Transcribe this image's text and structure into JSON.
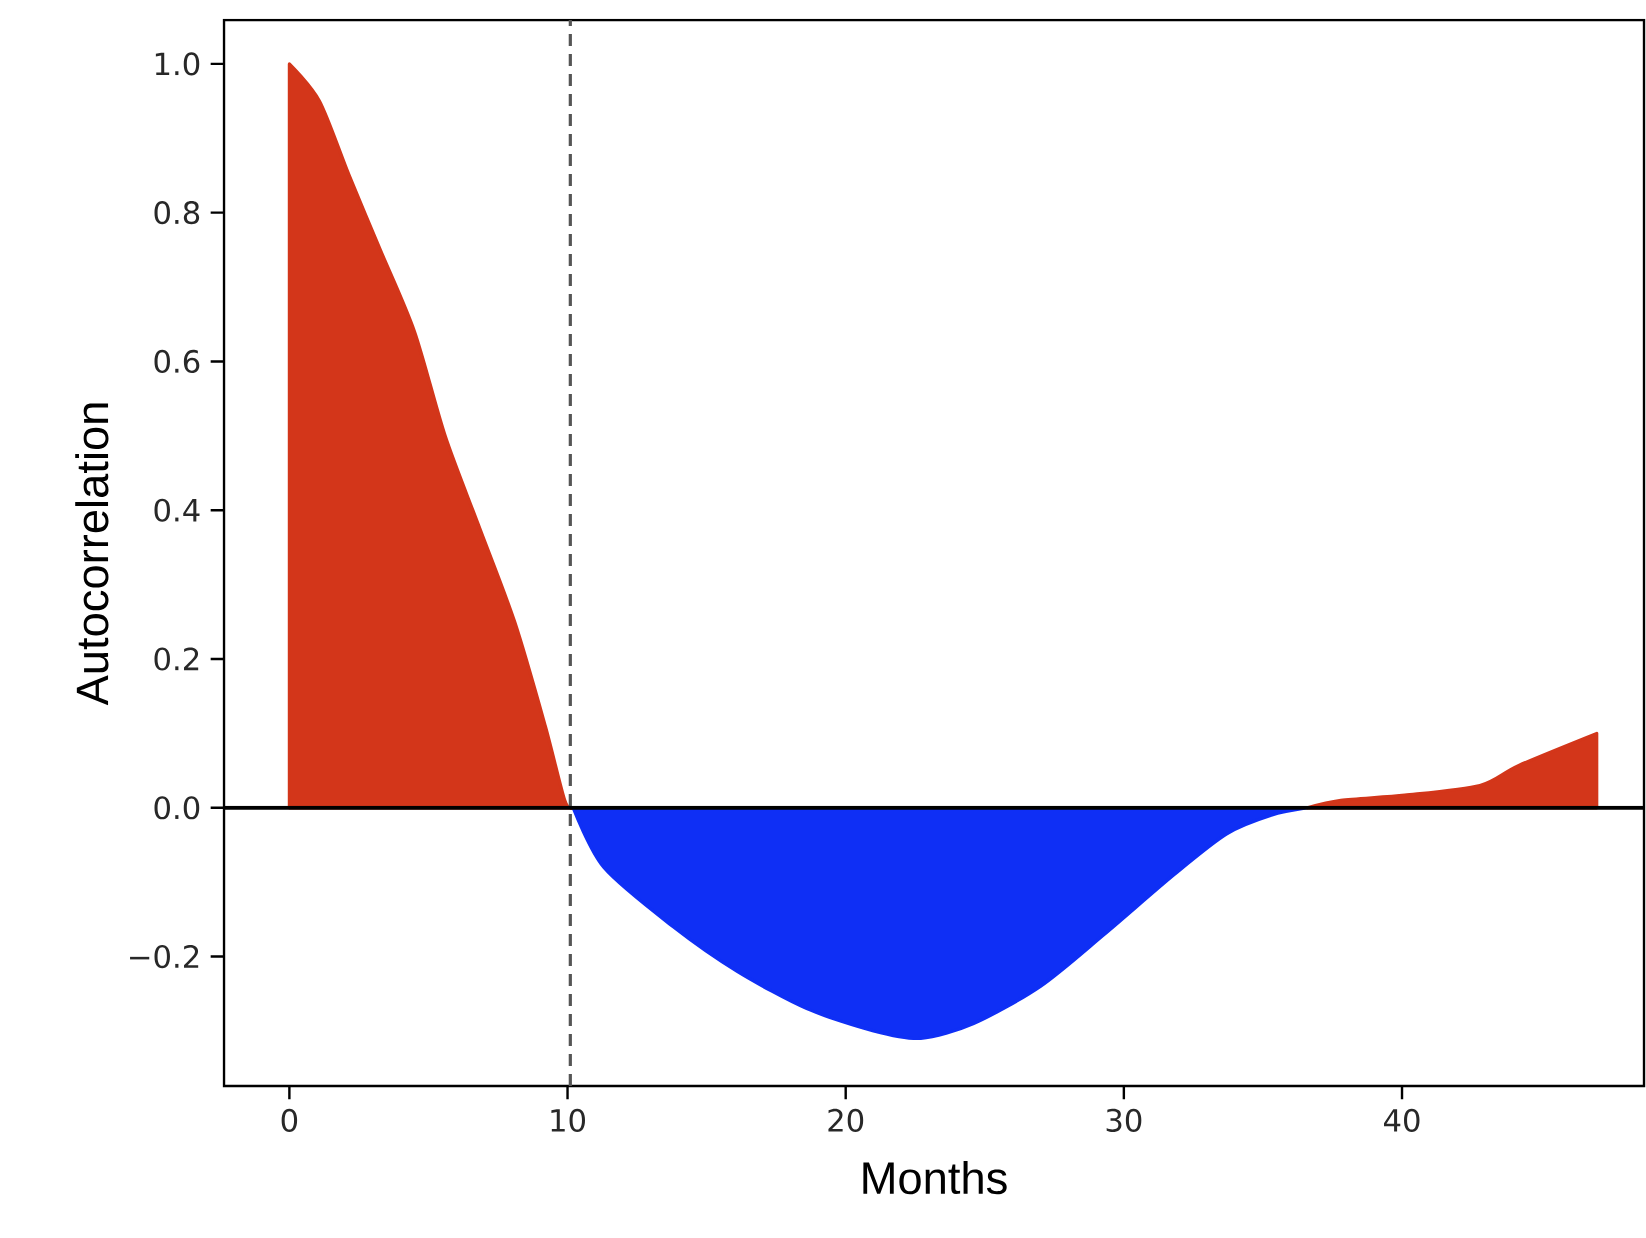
{
  "chart_data": {
    "type": "area",
    "xlabel": "Months",
    "ylabel": "Autocorrelation",
    "series": [
      {
        "color": "#d3361a",
        "x": [
          0,
          1.08,
          2.15,
          3.27,
          4.5,
          5.6,
          6.8,
          8.1,
          9.2,
          9.9,
          10.2
        ],
        "values": [
          1.0,
          0.95,
          0.85,
          0.75,
          0.64,
          0.5,
          0.38,
          0.25,
          0.11,
          0.01,
          0
        ]
      },
      {
        "color": "#0f2ff5",
        "x": [
          10.2,
          11.3,
          13.8,
          16.1,
          18.6,
          21.0,
          22.7,
          24.6,
          27.0,
          29.3,
          31.8,
          33.7,
          35.3,
          36.6
        ],
        "values": [
          0,
          -0.08,
          -0.16,
          -0.22,
          -0.27,
          -0.3,
          -0.31,
          -0.29,
          -0.24,
          -0.17,
          -0.09,
          -0.035,
          -0.01,
          0
        ]
      },
      {
        "color": "#d3361a",
        "x": [
          36.6,
          37.8,
          40.1,
          42.8,
          44.2,
          47.0
        ],
        "values": [
          0,
          0.01,
          0.017,
          0.03,
          0.057,
          0.1
        ]
      }
    ],
    "xlim": [
      -2.35,
      48.7
    ],
    "ylim": [
      -0.374,
      1.059
    ],
    "xticks": [
      0,
      10,
      20,
      30,
      40
    ],
    "yticks": [
      {
        "value": -0.2,
        "label": "−0.2"
      },
      {
        "value": 0,
        "label": "0.0"
      },
      0.2,
      0.4,
      0.6,
      0.8,
      {
        "value": 1,
        "label": "1.0"
      }
    ],
    "ref_lines": [
      {
        "axis": "x",
        "value": 10.1,
        "color": "#555555",
        "line_style": "dashed"
      },
      {
        "axis": "y",
        "value": 0,
        "color": "#000000",
        "line_style": "solid"
      }
    ],
    "grid": false
  }
}
